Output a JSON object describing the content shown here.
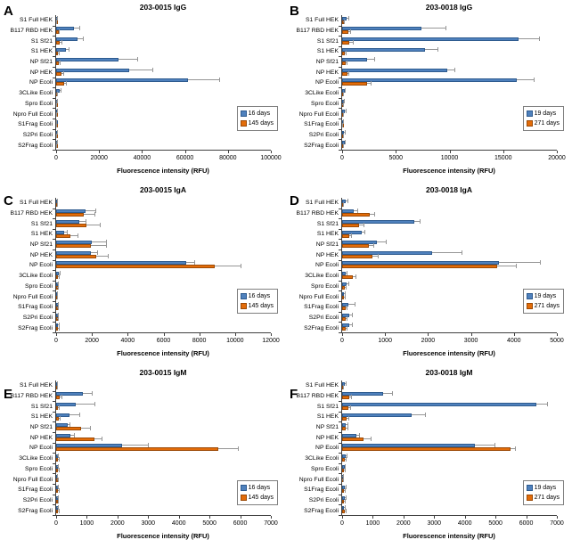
{
  "figure": {
    "panel_letters": [
      "A",
      "B",
      "C",
      "D",
      "E",
      "F"
    ],
    "xlabel": "Fluorescence intensity (RFU)",
    "colors": {
      "series1_fill": "#4F81BD",
      "series1_border": "#2E5B8F",
      "series2_fill": "#E36C09",
      "series2_border": "#9C4A06",
      "error_bar": "#969696",
      "axis": "#3f3f3f"
    }
  },
  "chart_data": [
    {
      "panel": "A",
      "type": "bar",
      "orientation": "horizontal",
      "title": "203-0015 IgG",
      "xlabel": "Fluorescence intensity (RFU)",
      "xlim": [
        0,
        100000
      ],
      "xticks": [
        0,
        20000,
        40000,
        60000,
        80000,
        100000
      ],
      "legend_position": "right-middle",
      "grid": false,
      "categories": [
        "S1 Full HEK",
        "B117 RBD HEK",
        "S1 Sf21",
        "S1 HEK",
        "NP Sf21",
        "NP HEK",
        "NP Ecoli",
        "3CLike Ecoli",
        "Spro Ecoli",
        "Npro Full Ecoli",
        "S1Frag Ecoli",
        "S2Pri Ecoli",
        "S2Frag Ecoli"
      ],
      "series": [
        {
          "name": "16 days",
          "color": "#4F81BD",
          "border": "#2E5B8F",
          "values": [
            200,
            8200,
            9800,
            4600,
            28900,
            34000,
            61500,
            1500,
            150,
            300,
            100,
            250,
            150
          ],
          "errors": [
            100,
            2800,
            2500,
            1100,
            8700,
            11000,
            14500,
            400,
            80,
            120,
            60,
            100,
            80
          ]
        },
        {
          "name": "145 days",
          "color": "#E36C09",
          "border": "#9C4A06",
          "values": [
            100,
            1100,
            1800,
            750,
            1300,
            2600,
            3800,
            150,
            80,
            100,
            80,
            100,
            80
          ],
          "errors": [
            50,
            350,
            500,
            300,
            400,
            700,
            900,
            60,
            40,
            50,
            40,
            50,
            40
          ]
        }
      ]
    },
    {
      "panel": "B",
      "type": "bar",
      "orientation": "horizontal",
      "title": "203-0018 IgG",
      "xlabel": "Fluorescence intensity (RFU)",
      "xlim": [
        0,
        20000
      ],
      "xticks": [
        0,
        5000,
        10000,
        15000,
        20000
      ],
      "legend_position": "right-middle",
      "grid": false,
      "categories": [
        "S1 Full HEK",
        "B117 RBD HEK",
        "S1 Sf21",
        "S1 HEK",
        "NP Sf21",
        "NP HEK",
        "NP Ecoli",
        "3CLike Ecoli",
        "Spro Ecoli",
        "Npro Full Ecoli",
        "S1Frag Ecoli",
        "S2Pri Ecoli",
        "S2Frag Ecoli"
      ],
      "series": [
        {
          "name": "19 days",
          "color": "#4F81BD",
          "border": "#2E5B8F",
          "values": [
            450,
            7350,
            16400,
            7700,
            2350,
            9800,
            16250,
            220,
            120,
            280,
            60,
            160,
            220
          ],
          "errors": [
            120,
            2250,
            1900,
            1200,
            650,
            650,
            1600,
            70,
            40,
            80,
            30,
            60,
            70
          ]
        },
        {
          "name": "271 days",
          "color": "#E36C09",
          "border": "#9C4A06",
          "values": [
            100,
            550,
            650,
            220,
            300,
            470,
            2350,
            60,
            40,
            60,
            30,
            50,
            60
          ],
          "errors": [
            40,
            160,
            330,
            80,
            100,
            130,
            320,
            20,
            15,
            20,
            10,
            20,
            20
          ]
        }
      ]
    },
    {
      "panel": "C",
      "type": "bar",
      "orientation": "horizontal",
      "title": "203-0015 IgA",
      "xlabel": "Fluorescence intensity (RFU)",
      "xlim": [
        0,
        12000
      ],
      "xticks": [
        0,
        2000,
        4000,
        6000,
        8000,
        10000,
        12000
      ],
      "legend_position": "right-middle",
      "grid": false,
      "categories": [
        "S1 Full HEK",
        "B117 RBD HEK",
        "S1 Sf21",
        "S1 HEK",
        "NP Sf21",
        "NP HEK",
        "NP Ecoli",
        "3CLike Ecoli",
        "Spro Ecoli",
        "Npro Full Ecoli",
        "S1Frag Ecoli",
        "S2Pri Ecoli",
        "S2Frag Ecoli"
      ],
      "series": [
        {
          "name": "16 days",
          "color": "#4F81BD",
          "border": "#2E5B8F",
          "values": [
            30,
            1650,
            1300,
            450,
            2000,
            1950,
            7250,
            130,
            70,
            30,
            70,
            60,
            90
          ],
          "errors": [
            20,
            550,
            350,
            150,
            800,
            350,
            470,
            90,
            30,
            20,
            30,
            30,
            40
          ]
        },
        {
          "name": "145 days",
          "color": "#E36C09",
          "border": "#9C4A06",
          "values": [
            30,
            1550,
            1700,
            800,
            1950,
            2250,
            8840,
            90,
            70,
            30,
            70,
            60,
            100
          ],
          "errors": [
            20,
            600,
            750,
            400,
            850,
            650,
            1450,
            40,
            30,
            20,
            30,
            30,
            40
          ]
        }
      ]
    },
    {
      "panel": "D",
      "type": "bar",
      "orientation": "horizontal",
      "title": "203-0018 IgA",
      "xlabel": "Fluorescence intensity (RFU)",
      "xlim": [
        0,
        5000
      ],
      "xticks": [
        0,
        1000,
        2000,
        3000,
        4000,
        5000
      ],
      "legend_position": "right-middle",
      "grid": false,
      "categories": [
        "S1 Full HEK",
        "B117 RBD HEK",
        "S1 Sf21",
        "S1 HEK",
        "NP Sf21",
        "NP HEK",
        "NP Ecoli",
        "3CLike Ecoli",
        "Spro Ecoli",
        "Npro Full Ecoli",
        "S1Frag Ecoli",
        "S2Pri Ecoli",
        "S2Frag Ecoli"
      ],
      "series": [
        {
          "name": "19 days",
          "color": "#4F81BD",
          "border": "#2E5B8F",
          "values": [
            80,
            270,
            1680,
            450,
            810,
            2090,
            3650,
            80,
            110,
            50,
            150,
            160,
            170
          ],
          "errors": [
            40,
            80,
            120,
            70,
            210,
            690,
            950,
            30,
            40,
            20,
            140,
            60,
            60
          ]
        },
        {
          "name": "271 days",
          "color": "#E36C09",
          "border": "#9C4A06",
          "values": [
            20,
            650,
            400,
            170,
            630,
            700,
            3620,
            240,
            60,
            40,
            80,
            80,
            80
          ],
          "errors": [
            10,
            100,
            90,
            40,
            95,
            140,
            430,
            70,
            20,
            15,
            25,
            25,
            25
          ]
        }
      ]
    },
    {
      "panel": "E",
      "type": "bar",
      "orientation": "horizontal",
      "title": "203-0015 IgM",
      "xlabel": "Fluorescence intensity (RFU)",
      "xlim": [
        0,
        7000
      ],
      "xticks": [
        0,
        1000,
        2000,
        3000,
        4000,
        5000,
        6000,
        7000
      ],
      "legend_position": "right-middle",
      "grid": false,
      "categories": [
        "S1 Full HEK",
        "B117 RBD HEK",
        "S1 Sf21",
        "S1 HEK",
        "NP Sf21",
        "NP HEK",
        "NP Ecoli",
        "3CLike Ecoli",
        "Spro Ecoli",
        "Npro Full Ecoli",
        "S1Frag Ecoli",
        "S2Pri Ecoli",
        "S2Frag Ecoli"
      ],
      "series": [
        {
          "name": "16 days",
          "color": "#4F81BD",
          "border": "#2E5B8F",
          "values": [
            20,
            880,
            630,
            450,
            370,
            470,
            2150,
            40,
            40,
            30,
            40,
            40,
            40
          ],
          "errors": [
            10,
            290,
            620,
            300,
            80,
            100,
            830,
            15,
            15,
            10,
            15,
            15,
            15
          ]
        },
        {
          "name": "145 days",
          "color": "#E36C09",
          "border": "#9C4A06",
          "values": [
            20,
            130,
            60,
            80,
            820,
            1260,
            5300,
            70,
            60,
            40,
            60,
            50,
            60
          ],
          "errors": [
            10,
            40,
            20,
            30,
            280,
            220,
            620,
            25,
            20,
            15,
            20,
            20,
            20
          ]
        }
      ]
    },
    {
      "panel": "F",
      "type": "bar",
      "orientation": "horizontal",
      "title": "203-0018 IgM",
      "xlabel": "Fluorescence intensity (RFU)",
      "xlim": [
        0,
        7000
      ],
      "xticks": [
        0,
        1000,
        2000,
        3000,
        4000,
        5000,
        6000,
        7000
      ],
      "legend_position": "right-middle",
      "grid": false,
      "categories": [
        "S1 Full HEK",
        "B117 RBD HEK",
        "S1 Sf21",
        "S1 HEK",
        "NP Sf21",
        "NP HEK",
        "NP Ecoli",
        "3CLike Ecoli",
        "Spro Ecoli",
        "Npro Full Ecoli",
        "S1Frag Ecoli",
        "S2Pri Ecoli",
        "S2Frag Ecoli"
      ],
      "series": [
        {
          "name": "19 days",
          "color": "#4F81BD",
          "border": "#2E5B8F",
          "values": [
            100,
            1340,
            6320,
            2280,
            120,
            460,
            4330,
            110,
            75,
            10,
            85,
            85,
            70
          ],
          "errors": [
            30,
            280,
            350,
            420,
            40,
            90,
            650,
            35,
            25,
            5,
            30,
            30,
            25
          ]
        },
        {
          "name": "271 days",
          "color": "#E36C09",
          "border": "#9C4A06",
          "values": [
            20,
            220,
            200,
            150,
            130,
            700,
            5480,
            90,
            60,
            10,
            70,
            70,
            90
          ],
          "errors": [
            10,
            60,
            50,
            40,
            40,
            230,
            160,
            25,
            20,
            5,
            25,
            25,
            30
          ]
        }
      ]
    }
  ]
}
